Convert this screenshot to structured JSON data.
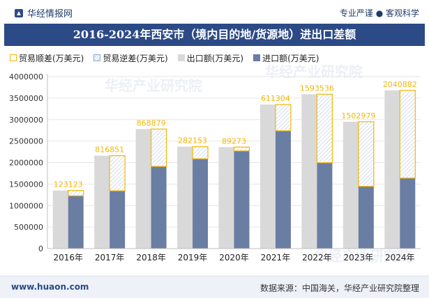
{
  "header": {
    "brand": "华经情报网",
    "slogan": "专业严谨 ● 客观科学",
    "title": "2016-2024年西安市（境内目的地/货源地）进出口差额"
  },
  "legend": {
    "surplus": "贸易顺差(万美元)",
    "deficit": "贸易逆差(万美元)",
    "export": "出口额(万美元)",
    "import": "进口额(万美元)"
  },
  "footer": {
    "site": "www.huaon.com",
    "source": "数据来源：中国海关，华经产业研究院整理"
  },
  "watermark": "华经产业研究院",
  "colors": {
    "title_bg": "#2b4a86",
    "export": "#d9d9d9",
    "import": "#6a7da3",
    "surplus": "#f2b705",
    "deficit": "#8fa6c8"
  },
  "chart_data": {
    "type": "bar",
    "categories": [
      "2016年",
      "2017年",
      "2018年",
      "2019年",
      "2020年",
      "2021年",
      "2022年",
      "2023年",
      "2024年"
    ],
    "series": [
      {
        "name": "出口额(万美元)",
        "values": [
          1350000,
          2160000,
          2780000,
          2370000,
          2360000,
          3350000,
          3590000,
          2950000,
          3680000
        ]
      },
      {
        "name": "进口额(万美元)",
        "values": [
          1226877,
          1343149,
          1911121,
          2087847,
          2270727,
          2738696,
          1996464,
          1447021,
          1639118
        ]
      }
    ],
    "surplus": [
      123123,
      816851,
      868879,
      282153,
      89273,
      611304,
      1593536,
      1502979,
      2040882
    ],
    "surplus_labels": [
      "123123",
      "816851",
      "868879",
      "282153",
      "89273",
      "611304",
      "1593536",
      "1502979",
      "2040882"
    ],
    "ylim": [
      0,
      4000000
    ],
    "yticks": [
      "0",
      "500000",
      "1000000",
      "1500000",
      "2000000",
      "2500000",
      "3000000",
      "3500000",
      "4000000"
    ],
    "grid": true,
    "legend_position": "top"
  }
}
